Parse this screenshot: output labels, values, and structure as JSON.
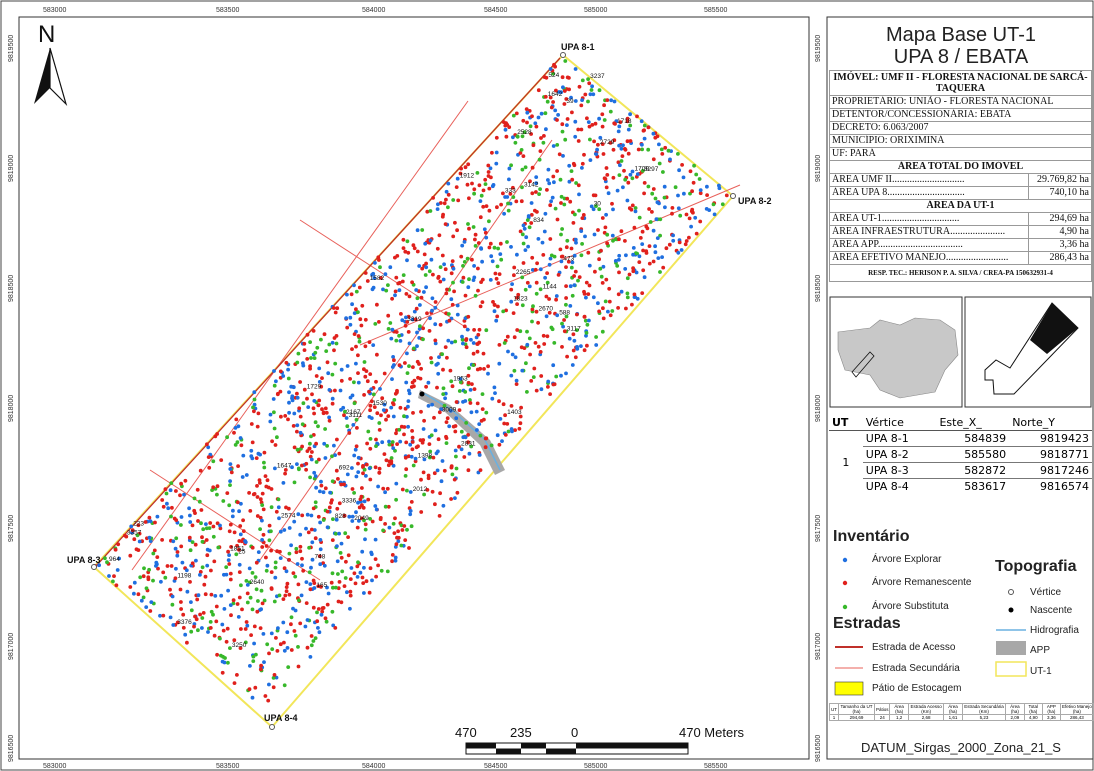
{
  "map": {
    "grid_x_labels": [
      "583000",
      "583500",
      "584000",
      "584500",
      "585000",
      "585500"
    ],
    "grid_y_labels": [
      "9819500",
      "9819000",
      "9818500",
      "9818000",
      "9817500",
      "9817000",
      "9816500"
    ],
    "north_label": "N",
    "vertex_labels": [
      "UPA 8-1",
      "UPA 8-2",
      "UPA 8-3",
      "UPA 8-4"
    ],
    "scale_labels": [
      "470",
      "235",
      "0",
      "470 Meters"
    ],
    "tree_sample_labels": [
      "223",
      "333",
      "25",
      "30",
      "39",
      "748",
      "165",
      "524",
      "1144",
      "1403",
      "1582",
      "1912",
      "2012",
      "2265",
      "2574",
      "2670",
      "3009",
      "3142",
      "3297",
      "3319",
      "3336",
      "3357",
      "3376",
      "3237",
      "3117",
      "3111",
      "2831",
      "2729",
      "2640",
      "2528",
      "2167",
      "2049",
      "1953",
      "1851",
      "1729",
      "1718",
      "1709",
      "1530",
      "1398",
      "1198",
      "964",
      "834",
      "828",
      "692",
      "588",
      "473",
      "3250",
      "1647",
      "1823",
      "1642"
    ]
  },
  "title": {
    "line1": "Mapa Base UT-1",
    "line2": "UPA 8 / EBATA"
  },
  "info": {
    "imovel": "IMÓVEL: UMF II - FLORESTA NACIONAL DE SARCÁ-TAQUERA",
    "proprietario": "PROPRIETÁRIO: UNIÃO - FLORESTA NACIONAL",
    "detentor": "DETENTOR/CONCESSIONÁRIA: EBATA",
    "decreto": "DECRETO: 6.063/2007",
    "municipio": "MUNICÍPIO: ORIXIMINÁ",
    "uf": "UF: PARÁ",
    "area_total_header": "ÁREA TOTAL DO IMÓVEL",
    "area_umf_label": "ÁREA UMF II.............................",
    "area_umf_value": "29.769,82 ha",
    "area_upa_label": "ÁREA UPA 8...............................",
    "area_upa_value": "740,10 ha",
    "area_ut_header": "ÁREA DA UT-1",
    "area_ut_label": "ÁREA UT-1...............................",
    "area_ut_value": "294,69 ha",
    "area_infra_label": "ÁREA INFRAESTRUTURA......................",
    "area_infra_value": "4,90 ha",
    "area_app_label": "ÁREA APP..................................",
    "area_app_value": "3,36 ha",
    "area_manejo_label": "ÁREA EFETIVO MANEJO.........................",
    "area_manejo_value": "286,43 ha",
    "resp_tec": "RESP. TEC.: HERISON P. A. SILVA / CREA-PA 150632931-4"
  },
  "vertices": {
    "headers": [
      "UT",
      "Vértice",
      "Este_X_",
      "Norte_Y"
    ],
    "ut": "1",
    "rows": [
      {
        "name": "UPA 8-1",
        "este": "584839",
        "norte": "9819423"
      },
      {
        "name": "UPA 8-2",
        "este": "585580",
        "norte": "9818771"
      },
      {
        "name": "UPA 8-3",
        "este": "582872",
        "norte": "9817246"
      },
      {
        "name": "UPA 8-4",
        "este": "583617",
        "norte": "9816574"
      }
    ]
  },
  "legend": {
    "inventario_title": "Inventário",
    "arvore_explorar": "Árvore Explorar",
    "arvore_remanescente": "Árvore Remanescente",
    "arvore_substituta": "Árvore Substituta",
    "estradas_title": "Estradas",
    "estrada_acesso": "Estrada de Acesso",
    "estrada_secundaria": "Estrada Secundária",
    "patio": "Pátio de Estocagem",
    "topografia_title": "Topografia",
    "vertice": "Vértice",
    "nascente": "Nascente",
    "hidrografia": "Hidrografia",
    "app": "APP",
    "ut1": "UT-1",
    "colors": {
      "explorar": "#1f6fe0",
      "remanescente": "#e0201c",
      "substituta": "#37b82a",
      "acesso": "#c0302a",
      "secundaria": "#e8605a",
      "patio": "#ffff00",
      "hidro": "#6ab0e0",
      "app": "#a8a8a8",
      "ut": "#f2e65a"
    }
  },
  "summary": {
    "headers": [
      "UT",
      "Tamanho da UT (ha)",
      "Pátios",
      "Área (ha)",
      "Estrada Acesso (Km)",
      "Área (ha)",
      "Estrada Secundária (Km)",
      "Área (ha)",
      "Total (ha)",
      "APP (ha)",
      "Efetivo Manejo (ha)"
    ],
    "row": [
      "1",
      "294,69",
      "24",
      "1,2",
      "2,68",
      "1,61",
      "5,23",
      "2,09",
      "4,90",
      "3,36",
      "286,43"
    ]
  },
  "datum": "DATUM_Sirgas_2000_Zona_21_S"
}
